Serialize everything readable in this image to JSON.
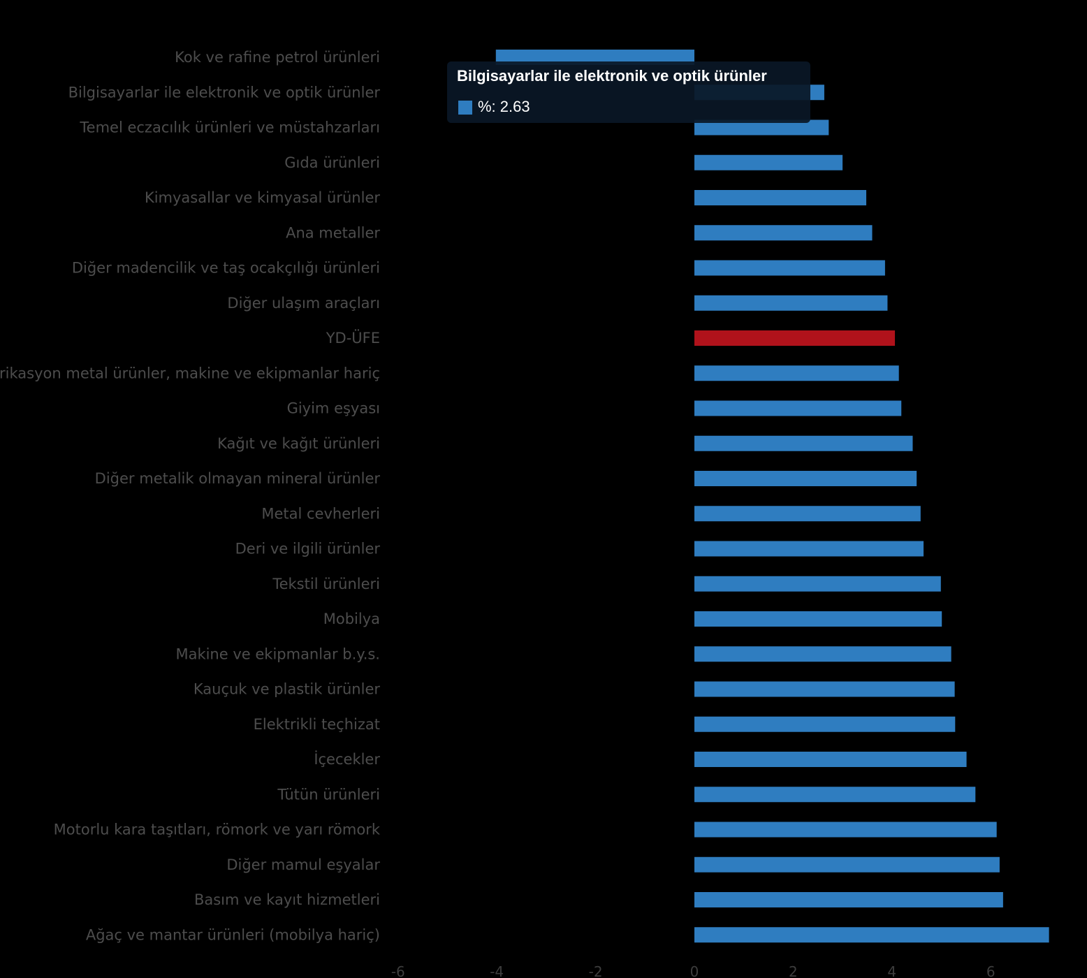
{
  "chart_data": {
    "type": "bar",
    "orientation": "horizontal",
    "title": "",
    "xlabel": "",
    "ylabel": "",
    "xlim": [
      -6,
      7.2
    ],
    "x_ticks": [
      -6,
      -4,
      -2,
      0,
      2,
      4,
      6
    ],
    "x_tick_labels": [
      "-6",
      "-4",
      "-2",
      "0",
      "2",
      "4",
      "6"
    ],
    "grid": false,
    "legend": "none",
    "series": [
      {
        "name": "%",
        "color": "#2f7dc0",
        "highlight_color": "#b0121b",
        "values": [
          -4.02,
          2.63,
          2.72,
          3.0,
          3.48,
          3.6,
          3.86,
          3.91,
          4.06,
          4.14,
          4.19,
          4.42,
          4.5,
          4.58,
          4.64,
          4.99,
          5.01,
          5.2,
          5.27,
          5.28,
          5.51,
          5.69,
          6.12,
          6.18,
          6.25,
          7.18
        ]
      }
    ],
    "categories": [
      "Kok ve rafine petrol ürünleri",
      "Bilgisayarlar ile elektronik ve optik ürünler",
      "Temel eczacılık ürünleri ve müstahzarları",
      "Gıda ürünleri",
      "Kimyasallar ve kimyasal ürünler",
      "Ana metaller",
      "Diğer madencilik ve taş ocakçılığı ürünleri",
      "Diğer ulaşım araçları",
      "YD-ÜFE",
      "Fabrikasyon metal ürünler, makine ve ekipmanlar hariç",
      "Giyim eşyası",
      "Kağıt ve kağıt ürünleri",
      "Diğer metalik olmayan mineral ürünler",
      "Metal cevherleri",
      "Deri ve ilgili ürünler",
      "Tekstil ürünleri",
      "Mobilya",
      "Makine ve ekipmanlar b.y.s.",
      "Kauçuk ve plastik ürünler",
      "Elektrikli teçhizat",
      "İçecekler",
      "Tütün ürünleri",
      "Motorlu kara taşıtları, römork ve yarı römork",
      "Diğer mamul eşyalar",
      "Basım ve kayıt hizmetleri",
      "Ağaç ve mantar ürünleri (mobilya hariç)"
    ],
    "highlight_category": "YD-ÜFE",
    "tooltip": {
      "title": "Bilgisayarlar ile elektronik ve optik ürünler",
      "value_text": "%: 2.63",
      "swatch_color": "#2f7dc0"
    }
  }
}
